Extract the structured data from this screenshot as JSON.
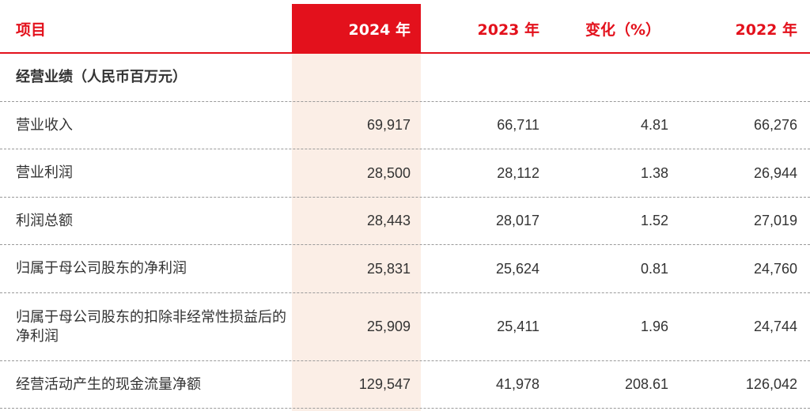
{
  "header": {
    "item": "项目",
    "y2024": "2024 年",
    "y2023": "2023 年",
    "change": "变化（%）",
    "y2022": "2022 年"
  },
  "section_title": "经营业绩（人民币百万元）",
  "rows": [
    {
      "label": "营业收入",
      "y2024": "69,917",
      "y2023": "66,711",
      "change": "4.81",
      "y2022": "66,276"
    },
    {
      "label": "营业利润",
      "y2024": "28,500",
      "y2023": "28,112",
      "change": "1.38",
      "y2022": "26,944"
    },
    {
      "label": "利润总额",
      "y2024": "28,443",
      "y2023": "28,017",
      "change": "1.52",
      "y2022": "27,019"
    },
    {
      "label": "归属于母公司股东的净利润",
      "y2024": "25,831",
      "y2023": "25,624",
      "change": "0.81",
      "y2022": "24,760"
    },
    {
      "label": "归属于母公司股东的扣除非经常性损益后的净利润",
      "y2024": "25,909",
      "y2023": "25,411",
      "change": "1.96",
      "y2022": "24,744"
    },
    {
      "label": "经营活动产生的现金流量净额",
      "y2024": "129,547",
      "y2023": "41,978",
      "change": "208.61",
      "y2022": "126,042"
    }
  ],
  "colors": {
    "accent": "#e3111c",
    "highlight": "#fbeee6"
  }
}
